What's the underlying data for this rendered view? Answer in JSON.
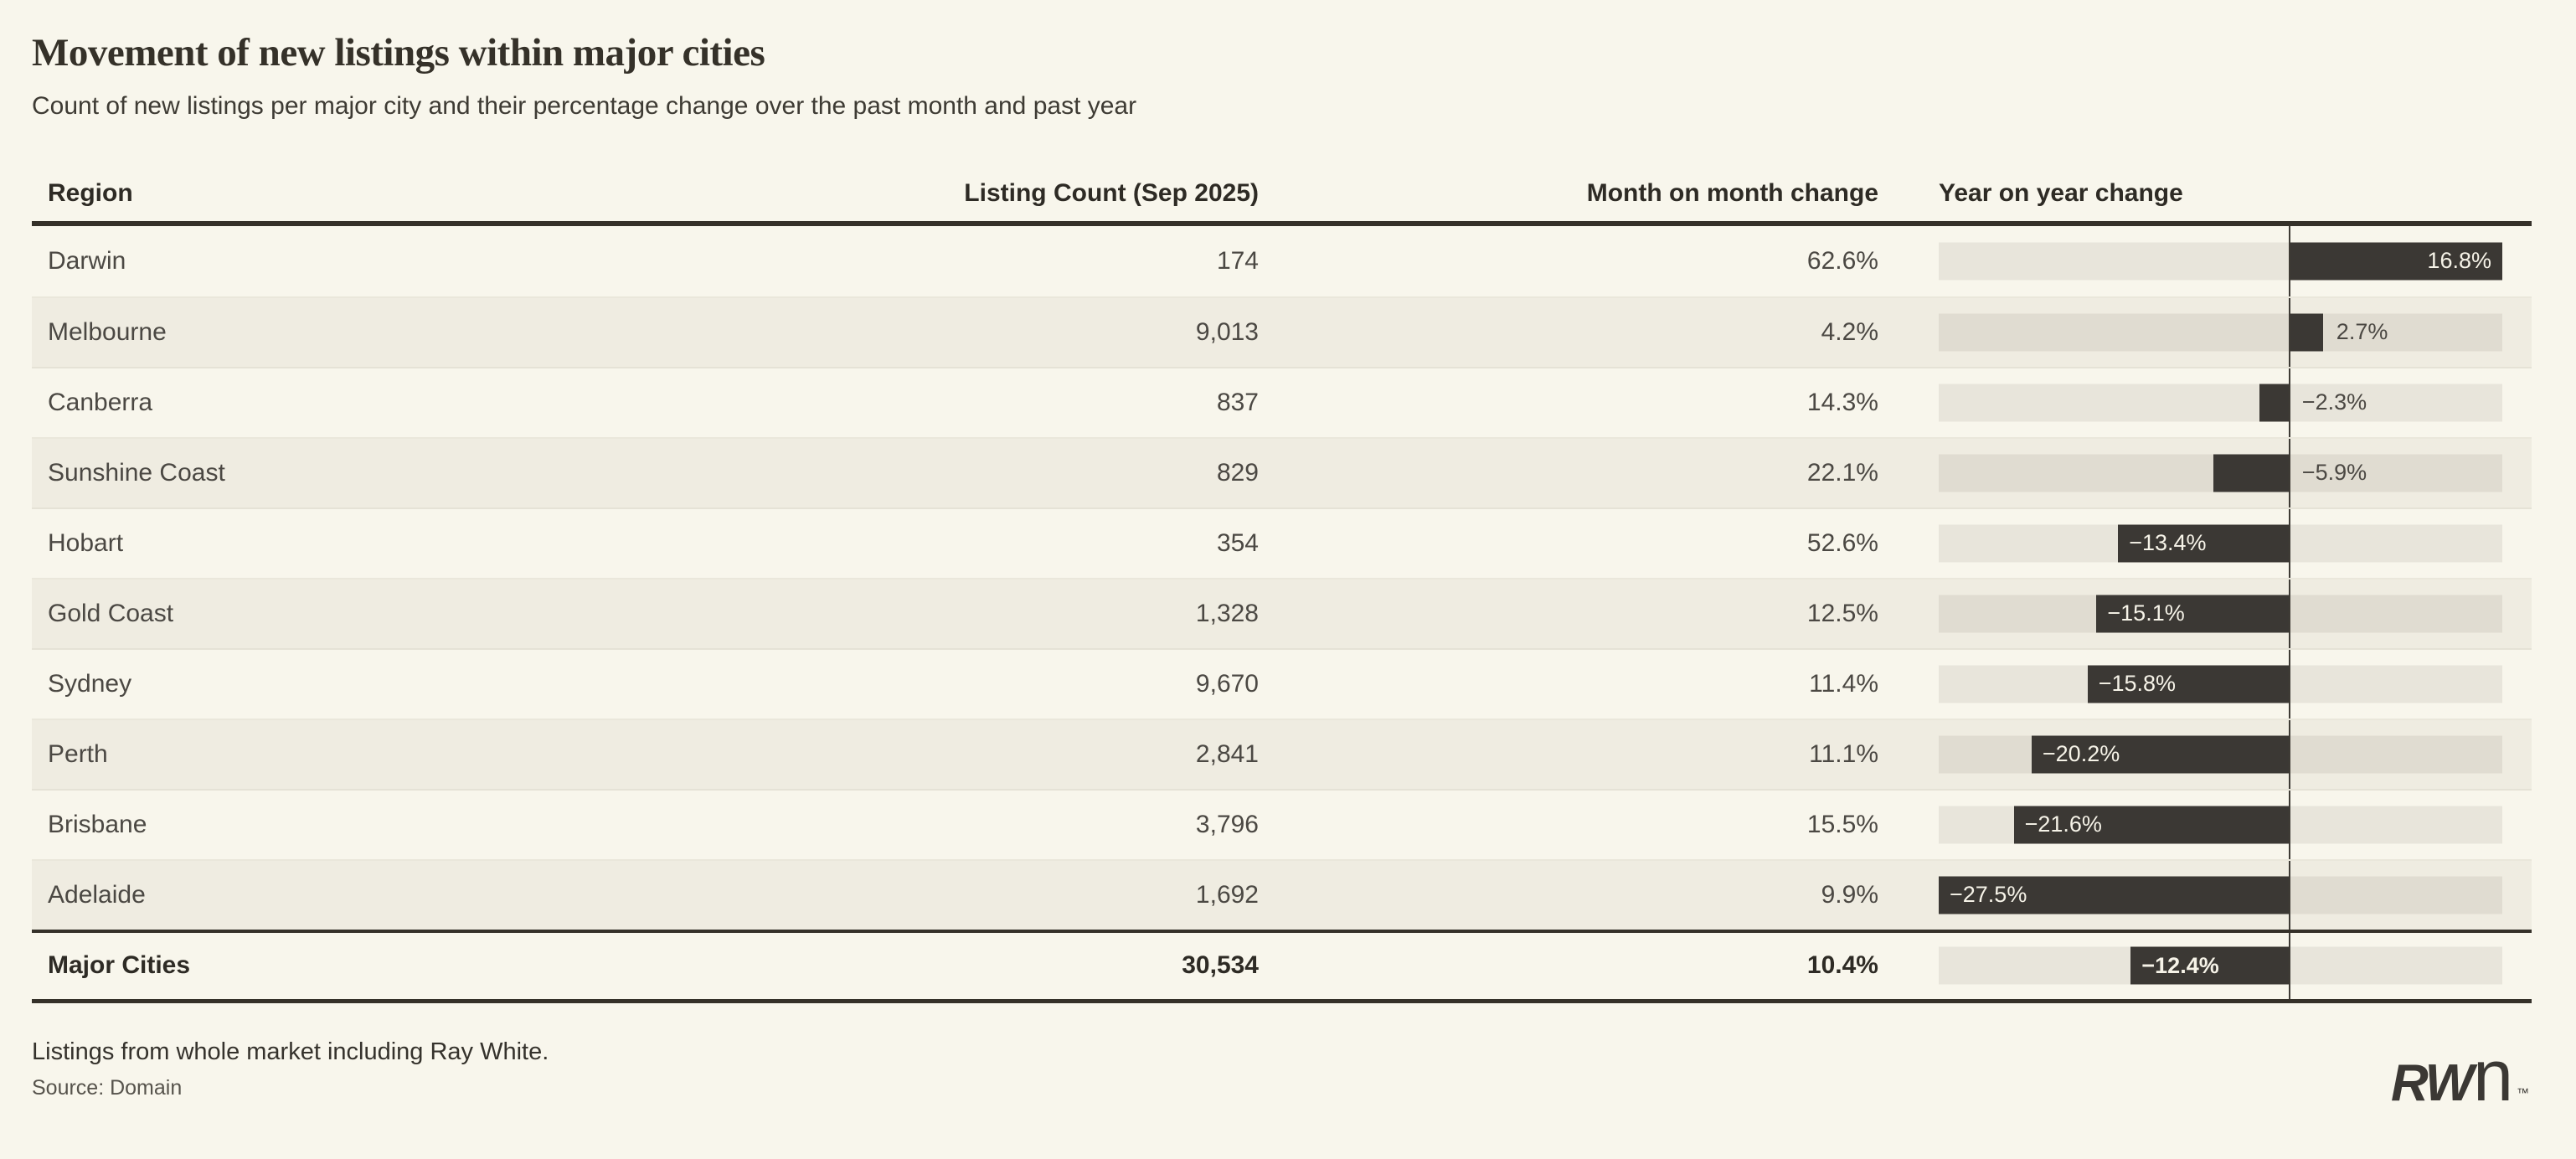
{
  "header": {
    "title": "Movement of new listings within major cities",
    "subtitle": "Count of new listings per major city and their percentage change over the past month and past year"
  },
  "table": {
    "columns": [
      "Region",
      "Listing Count (Sep 2025)",
      "Month on month change",
      "Year on year change"
    ],
    "rows": [
      {
        "region": "Darwin",
        "count": "174",
        "mom": "62.6%",
        "yoy_label": "16.8%",
        "yoy": 16.8
      },
      {
        "region": "Melbourne",
        "count": "9,013",
        "mom": "4.2%",
        "yoy_label": "2.7%",
        "yoy": 2.7
      },
      {
        "region": "Canberra",
        "count": "837",
        "mom": "14.3%",
        "yoy_label": "−2.3%",
        "yoy": -2.3
      },
      {
        "region": "Sunshine Coast",
        "count": "829",
        "mom": "22.1%",
        "yoy_label": "−5.9%",
        "yoy": -5.9
      },
      {
        "region": "Hobart",
        "count": "354",
        "mom": "52.6%",
        "yoy_label": "−13.4%",
        "yoy": -13.4
      },
      {
        "region": "Gold Coast",
        "count": "1,328",
        "mom": "12.5%",
        "yoy_label": "−15.1%",
        "yoy": -15.1
      },
      {
        "region": "Sydney",
        "count": "9,670",
        "mom": "11.4%",
        "yoy_label": "−15.8%",
        "yoy": -15.8
      },
      {
        "region": "Perth",
        "count": "2,841",
        "mom": "11.1%",
        "yoy_label": "−20.2%",
        "yoy": -20.2
      },
      {
        "region": "Brisbane",
        "count": "3,796",
        "mom": "15.5%",
        "yoy_label": "−21.6%",
        "yoy": -21.6
      },
      {
        "region": "Adelaide",
        "count": "1,692",
        "mom": "9.9%",
        "yoy_label": "−27.5%",
        "yoy": -27.5
      },
      {
        "region": "Major Cities",
        "count": "30,534",
        "mom": "10.4%",
        "yoy_label": "−12.4%",
        "yoy": -12.4,
        "is_total": true
      }
    ]
  },
  "chart_data": {
    "type": "table",
    "title": "Movement of new listings within major cities",
    "subtitle": "Count of new listings per major city and their percentage change over the past month and past year",
    "columns": [
      "Region",
      "Listing Count (Sep 2025)",
      "Month on month change",
      "Year on year change"
    ],
    "rows": [
      {
        "region": "Darwin",
        "listing_count": 174,
        "mom_change_pct": 62.6,
        "yoy_change_pct": 16.8
      },
      {
        "region": "Melbourne",
        "listing_count": 9013,
        "mom_change_pct": 4.2,
        "yoy_change_pct": 2.7
      },
      {
        "region": "Canberra",
        "listing_count": 837,
        "mom_change_pct": 14.3,
        "yoy_change_pct": -2.3
      },
      {
        "region": "Sunshine Coast",
        "listing_count": 829,
        "mom_change_pct": 22.1,
        "yoy_change_pct": -5.9
      },
      {
        "region": "Hobart",
        "listing_count": 354,
        "mom_change_pct": 52.6,
        "yoy_change_pct": -13.4
      },
      {
        "region": "Gold Coast",
        "listing_count": 1328,
        "mom_change_pct": 12.5,
        "yoy_change_pct": -15.1
      },
      {
        "region": "Sydney",
        "listing_count": 9670,
        "mom_change_pct": 11.4,
        "yoy_change_pct": -15.8
      },
      {
        "region": "Perth",
        "listing_count": 2841,
        "mom_change_pct": 11.1,
        "yoy_change_pct": -20.2
      },
      {
        "region": "Brisbane",
        "listing_count": 3796,
        "mom_change_pct": 15.5,
        "yoy_change_pct": -21.6
      },
      {
        "region": "Adelaide",
        "listing_count": 1692,
        "mom_change_pct": 9.9,
        "yoy_change_pct": -27.5
      },
      {
        "region": "Major Cities",
        "listing_count": 30534,
        "mom_change_pct": 10.4,
        "yoy_change_pct": -12.4
      }
    ],
    "embedded_bar_chart": {
      "type": "bar",
      "column": "Year on year change",
      "orientation": "horizontal",
      "axis_range": [
        -27.5,
        16.8
      ],
      "zero_line": true,
      "bar_color": "#3b3834",
      "track_color": "#e4e1d6"
    },
    "layout": {
      "grid": false,
      "row_banding": true,
      "legend": "none"
    }
  },
  "colors": {
    "background": "#f8f6ec",
    "row_band": "#efece1",
    "bar_dark": "#3b3834",
    "text_dark": "#353129",
    "bar_label_light": "#f6f3e8"
  },
  "footnotes": {
    "line1": "Listings from whole market including Ray White.",
    "line2": "Source: Domain"
  },
  "logo": {
    "rw": "RW",
    "n": "n",
    "tm": "™"
  }
}
